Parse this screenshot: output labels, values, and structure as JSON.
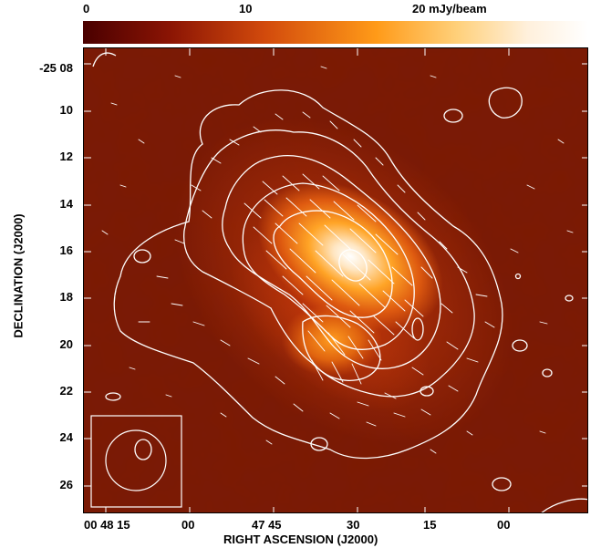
{
  "colorbar": {
    "label_0": "0",
    "label_10": "10",
    "label_20": "20 mJy/beam",
    "colormap": [
      "#4a0000",
      "#8a1404",
      "#d24a0c",
      "#ff9a18",
      "#ffd07a",
      "#fff0dc",
      "#ffffff"
    ]
  },
  "axes": {
    "y_title": "DECLINATION (J2000)",
    "x_title": "RIGHT ASCENSION (J2000)",
    "y_ticks": [
      "-25 08",
      "10",
      "12",
      "14",
      "16",
      "18",
      "20",
      "22",
      "24",
      "26"
    ],
    "x_ticks": [
      "00 48 15",
      "00",
      "47 45",
      "30",
      "15",
      "00"
    ]
  },
  "colors": {
    "contour": "#ffffff",
    "background_dark": "#5a0802",
    "background_mid": "#7a1a06",
    "peak": "#fff4e6"
  }
}
